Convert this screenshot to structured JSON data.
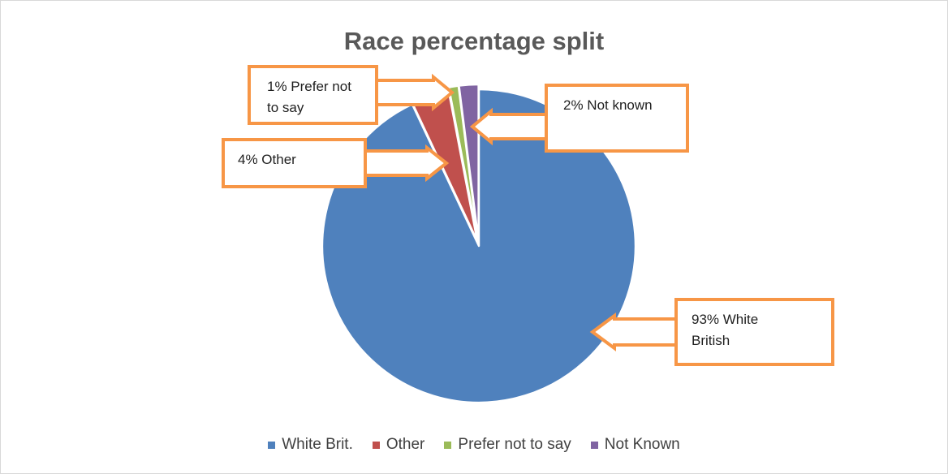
{
  "chart_data": {
    "type": "pie",
    "title": "Race percentage split",
    "categories": [
      "White Brit.",
      "Other",
      "Prefer not to say",
      "Not Known"
    ],
    "values": [
      93,
      4,
      1,
      2
    ],
    "colors": [
      "#4f81bd",
      "#c0504d",
      "#9bbb59",
      "#8064a2"
    ],
    "legend_placement": "bottom",
    "annotations": [
      {
        "line1": "93% White",
        "line2": "British",
        "category": "White Brit."
      },
      {
        "line1": "4% Other",
        "line2": "",
        "category": "Other"
      },
      {
        "line1": "1% Prefer not",
        "line2": "to say",
        "category": "Prefer not to say"
      },
      {
        "line1": "2% Not known",
        "line2": "",
        "category": "Not Known"
      }
    ],
    "callout_color": "#f79646"
  }
}
